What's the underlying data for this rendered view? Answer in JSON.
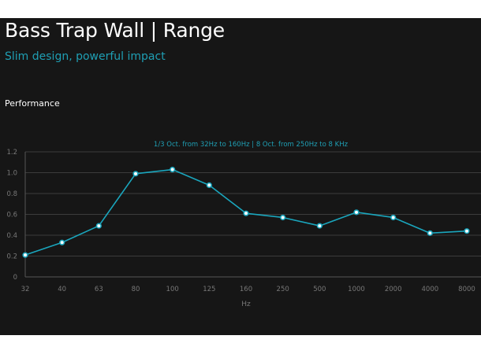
{
  "header": {
    "title": "Bass Trap Wall | Range",
    "subtitle": "Slim design, powerful impact"
  },
  "section": {
    "label": "Performance"
  },
  "colors": {
    "background": "#161616",
    "accent": "#1f9fb4",
    "line": "#1aa6bd",
    "point_fill": "#ffffff",
    "grid": "#3c3c3c",
    "axis_text": "#777777"
  },
  "chart_data": {
    "type": "line",
    "title": "1/3 Oct. from 32Hz to 160Hz | 8 Oct. from 250Hz to 8 KHz",
    "xlabel": "Hz",
    "ylabel": "",
    "categories": [
      "32",
      "40",
      "63",
      "80",
      "100",
      "125",
      "160",
      "250",
      "500",
      "1000",
      "2000",
      "4000",
      "8000"
    ],
    "series": [
      {
        "values": [
          0.21,
          0.33,
          0.49,
          0.99,
          1.03,
          0.88,
          0.61,
          0.57,
          0.49,
          0.62,
          0.57,
          0.42,
          0.44
        ]
      }
    ],
    "ylim": [
      0,
      1.2
    ],
    "yticks": [
      "0",
      "0.2",
      "0.4",
      "0.6",
      "0.8",
      "1.0",
      "1.2"
    ],
    "grid": true,
    "legend": false
  }
}
